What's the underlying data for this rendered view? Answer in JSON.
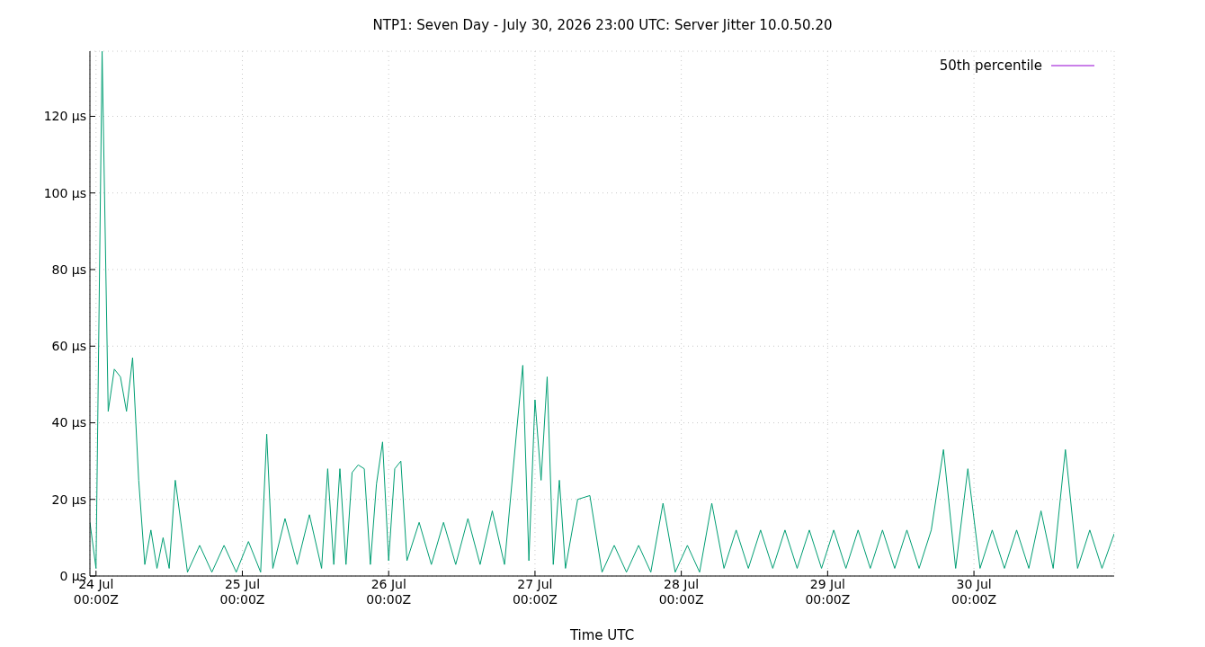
{
  "chart_data": {
    "type": "line",
    "title": "NTP1: Seven Day - July 30, 2026 23:00 UTC: Server Jitter 10.0.50.20",
    "xlabel": "Time UTC",
    "x": [
      "2026-07-23T23:00",
      "2026-07-24T00:00",
      "2026-07-24T01:00",
      "2026-07-24T02:00",
      "2026-07-24T03:00",
      "2026-07-24T04:00",
      "2026-07-24T05:00",
      "2026-07-24T06:00",
      "2026-07-24T07:00",
      "2026-07-24T08:00",
      "2026-07-24T09:00",
      "2026-07-24T10:00",
      "2026-07-24T11:00",
      "2026-07-24T12:00",
      "2026-07-24T13:00",
      "2026-07-24T15:00",
      "2026-07-24T17:00",
      "2026-07-24T19:00",
      "2026-07-24T21:00",
      "2026-07-24T23:00",
      "2026-07-25T01:00",
      "2026-07-25T03:00",
      "2026-07-25T04:00",
      "2026-07-25T05:00",
      "2026-07-25T07:00",
      "2026-07-25T09:00",
      "2026-07-25T11:00",
      "2026-07-25T13:00",
      "2026-07-25T14:00",
      "2026-07-25T15:00",
      "2026-07-25T16:00",
      "2026-07-25T17:00",
      "2026-07-25T18:00",
      "2026-07-25T19:00",
      "2026-07-25T20:00",
      "2026-07-25T21:00",
      "2026-07-25T22:00",
      "2026-07-25T23:00",
      "2026-07-26T00:00",
      "2026-07-26T01:00",
      "2026-07-26T02:00",
      "2026-07-26T03:00",
      "2026-07-26T05:00",
      "2026-07-26T07:00",
      "2026-07-26T09:00",
      "2026-07-26T11:00",
      "2026-07-26T13:00",
      "2026-07-26T15:00",
      "2026-07-26T17:00",
      "2026-07-26T19:00",
      "2026-07-26T21:00",
      "2026-07-26T22:00",
      "2026-07-26T23:00",
      "2026-07-27T00:00",
      "2026-07-27T01:00",
      "2026-07-27T02:00",
      "2026-07-27T03:00",
      "2026-07-27T04:00",
      "2026-07-27T05:00",
      "2026-07-27T07:00",
      "2026-07-27T09:00",
      "2026-07-27T11:00",
      "2026-07-27T13:00",
      "2026-07-27T15:00",
      "2026-07-27T17:00",
      "2026-07-27T19:00",
      "2026-07-27T21:00",
      "2026-07-27T23:00",
      "2026-07-28T01:00",
      "2026-07-28T03:00",
      "2026-07-28T05:00",
      "2026-07-28T07:00",
      "2026-07-28T09:00",
      "2026-07-28T11:00",
      "2026-07-28T13:00",
      "2026-07-28T15:00",
      "2026-07-28T17:00",
      "2026-07-28T19:00",
      "2026-07-28T21:00",
      "2026-07-28T23:00",
      "2026-07-29T01:00",
      "2026-07-29T03:00",
      "2026-07-29T05:00",
      "2026-07-29T07:00",
      "2026-07-29T09:00",
      "2026-07-29T11:00",
      "2026-07-29T13:00",
      "2026-07-29T15:00",
      "2026-07-29T17:00",
      "2026-07-29T19:00",
      "2026-07-29T21:00",
      "2026-07-29T23:00",
      "2026-07-30T01:00",
      "2026-07-30T03:00",
      "2026-07-30T05:00",
      "2026-07-30T07:00",
      "2026-07-30T09:00",
      "2026-07-30T11:00",
      "2026-07-30T13:00",
      "2026-07-30T15:00",
      "2026-07-30T17:00",
      "2026-07-30T19:00",
      "2026-07-30T21:00",
      "2026-07-30T23:00"
    ],
    "series": [
      {
        "name": "50th percentile",
        "color": "#9400d3",
        "values": [
          null,
          null,
          null,
          null,
          null,
          null,
          null,
          null,
          null,
          null,
          null,
          null,
          null,
          null,
          null,
          null,
          null,
          null,
          null,
          null,
          null,
          null,
          null,
          null,
          null,
          null,
          null,
          null,
          null,
          null,
          null,
          null,
          null,
          null,
          null,
          null,
          null,
          null,
          null,
          null,
          null,
          null,
          null,
          null,
          null,
          null,
          null,
          null,
          null,
          null,
          null,
          null,
          null,
          null,
          null,
          null,
          null,
          null,
          null,
          null,
          null,
          null,
          null,
          null,
          null,
          null,
          null,
          null,
          null,
          null,
          null,
          null,
          null,
          null,
          null,
          null,
          null,
          null,
          null,
          null,
          null,
          null,
          null,
          null,
          null,
          null,
          null,
          null,
          null,
          null,
          null,
          null,
          null,
          null,
          null,
          null,
          null,
          null,
          null,
          null,
          null,
          null,
          null,
          null
        ]
      },
      {
        "color": "#009e73",
        "values": [
          14,
          2,
          137,
          43,
          54,
          52,
          43,
          57,
          25,
          3,
          12,
          2,
          10,
          2,
          25,
          1,
          8,
          1,
          8,
          1,
          9,
          1,
          37,
          2,
          15,
          3,
          16,
          2,
          28,
          3,
          28,
          3,
          27,
          29,
          28,
          3,
          24,
          35,
          4,
          28,
          30,
          4,
          14,
          3,
          14,
          3,
          15,
          3,
          17,
          3,
          38,
          55,
          4,
          46,
          25,
          52,
          3,
          25,
          2,
          20,
          21,
          1,
          8,
          1,
          8,
          1,
          19,
          1,
          8,
          1,
          19,
          2,
          12,
          2,
          12,
          2,
          12,
          2,
          12,
          2,
          12,
          2,
          12,
          2,
          12,
          2,
          12,
          2,
          12,
          33,
          2,
          28,
          2,
          12,
          2,
          12,
          2,
          17,
          2,
          33,
          2,
          12,
          2,
          11
        ]
      }
    ],
    "xlim": [
      "2026-07-23T23:00",
      "2026-07-30T23:00"
    ],
    "xticks": [
      {
        "value": "2026-07-24",
        "label": "24 Jul\n00:00Z"
      },
      {
        "value": "2026-07-25",
        "label": "25 Jul\n00:00Z"
      },
      {
        "value": "2026-07-26",
        "label": "26 Jul\n00:00Z"
      },
      {
        "value": "2026-07-27",
        "label": "27 Jul\n00:00Z"
      },
      {
        "value": "2026-07-28",
        "label": "28 Jul\n00:00Z"
      },
      {
        "value": "2026-07-29",
        "label": "29 Jul\n00:00Z"
      },
      {
        "value": "2026-07-30",
        "label": "30 Jul\n00:00Z"
      }
    ],
    "ylim": [
      0,
      137
    ],
    "yticks": [
      {
        "value": 0,
        "label": "0 µs"
      },
      {
        "value": 20,
        "label": "20 µs"
      },
      {
        "value": 40,
        "label": "40 µs"
      },
      {
        "value": 60,
        "label": "60 µs"
      },
      {
        "value": 80,
        "label": "80 µs"
      },
      {
        "value": 100,
        "label": "100 µs"
      },
      {
        "value": 120,
        "label": "120 µs"
      }
    ],
    "grid": true,
    "legend": "top right"
  }
}
